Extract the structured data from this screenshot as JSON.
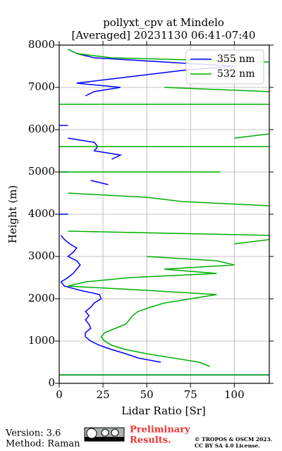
{
  "chart_data": {
    "type": "line",
    "title": "pollyxt_cpv at Mindelo",
    "subtitle": "[Averaged] 20231130 06:41-07:40",
    "xlabel": "Lidar Ratio [Sr]",
    "ylabel": "Height (m)",
    "y": [
      200,
      300,
      400,
      500,
      600,
      700,
      800,
      900,
      1000,
      1100,
      1200,
      1300,
      1400,
      1500,
      1600,
      1700,
      1800,
      1900,
      2000,
      2100,
      2200,
      2300,
      2400,
      2500,
      2600,
      2700,
      2800,
      2900,
      3000,
      3100,
      3200,
      3300,
      3400,
      3500,
      3600,
      3700,
      3800,
      3900,
      4000,
      4100,
      4200,
      4300,
      4400,
      4500,
      4600,
      4700,
      4800,
      4900,
      5000,
      5100,
      5200,
      5300,
      5400,
      5500,
      5600,
      5700,
      5800,
      5900,
      6000,
      6100,
      6200,
      6300,
      6400,
      6500,
      6600,
      6700,
      6800,
      6900,
      7000,
      7100,
      7200,
      7300,
      7400,
      7500,
      7600,
      7700,
      7800,
      7900
    ],
    "series": [
      {
        "name": "355 nm",
        "color": "#0000ff",
        "values": [
          120,
          null,
          null,
          58,
          45,
          38,
          30,
          23,
          18,
          15,
          15,
          18,
          17,
          15,
          17,
          15,
          18,
          20,
          24,
          23,
          12,
          3,
          1,
          5,
          8,
          10,
          12,
          10,
          5,
          8,
          10,
          6,
          3,
          1,
          null,
          null,
          null,
          null,
          5,
          null,
          null,
          null,
          null,
          null,
          null,
          28,
          18,
          null,
          5,
          null,
          null,
          30,
          35,
          20,
          22,
          20,
          5,
          null,
          null,
          5,
          null,
          null,
          null,
          null,
          null,
          null,
          15,
          20,
          35,
          10,
          30,
          50,
          70,
          100,
          60,
          20,
          10,
          5
        ]
      },
      {
        "name": "532 nm",
        "color": "#00b000",
        "values": [
          120,
          null,
          86,
          80,
          65,
          50,
          38,
          30,
          26,
          24,
          26,
          32,
          38,
          40,
          42,
          45,
          52,
          60,
          75,
          90,
          50,
          5,
          15,
          40,
          90,
          60,
          100,
          90,
          50,
          null,
          null,
          100,
          120,
          120,
          5,
          null,
          null,
          null,
          null,
          null,
          120,
          70,
          50,
          5,
          null,
          null,
          null,
          null,
          92,
          null,
          null,
          null,
          null,
          null,
          120,
          null,
          100,
          120,
          null,
          null,
          null,
          null,
          null,
          null,
          120,
          null,
          null,
          120,
          60,
          null,
          120,
          120,
          120,
          120,
          120,
          30,
          10,
          5
        ]
      }
    ],
    "xlim": [
      0,
      120
    ],
    "xticks": [
      0,
      25,
      50,
      75,
      100
    ],
    "ylim": [
      0,
      8000
    ],
    "yticks": [
      0,
      1000,
      2000,
      3000,
      4000,
      5000,
      6000,
      7000,
      8000
    ],
    "grid": true,
    "legend": "upper right"
  },
  "footer": {
    "version": "Version: 3.6",
    "method": "Method: Raman",
    "notice": [
      "Preliminary",
      "Results."
    ],
    "copyright": [
      "© TROPOS & OSCM 2023.",
      "CC BY SA 4.0 License."
    ]
  }
}
